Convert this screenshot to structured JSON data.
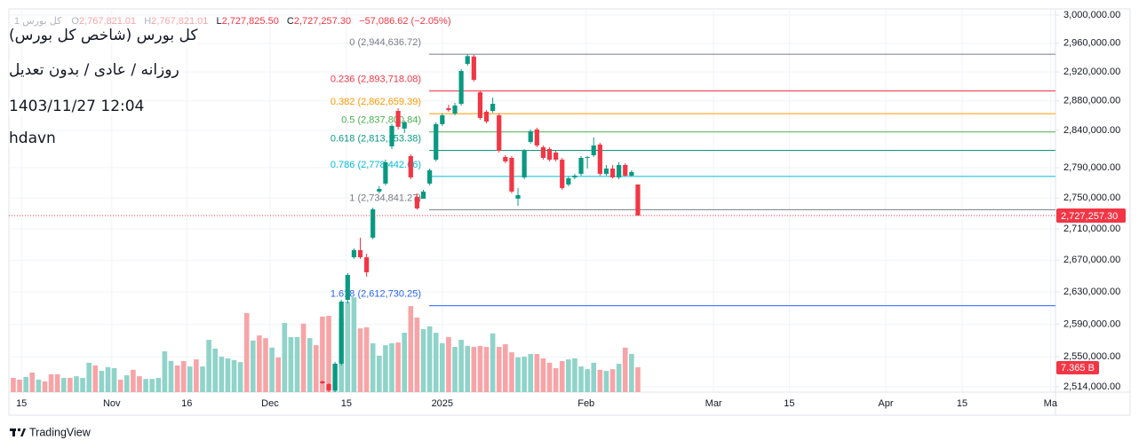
{
  "header": {
    "symbol": "1 کل بورس",
    "ohlc": [
      {
        "key": "O",
        "value": "2,767,821.01"
      },
      {
        "key": "H",
        "value": "2,767,821.01"
      },
      {
        "key": "L",
        "value": "2,727,825.50"
      },
      {
        "key": "C",
        "value": "2,727,257.30"
      }
    ],
    "change": "−57,086.62 (−2.05%)"
  },
  "overlay": {
    "lines": [
      "کل بورس (شاخص کل بورس)",
      "روزانه / عادی / بدون تعدیل",
      "1403/11/27 12:04",
      "hdavn"
    ]
  },
  "chart_data": {
    "type": "candlestick",
    "log_scale": true,
    "grid": true,
    "up_color": "#089981",
    "down_color": "#f23645",
    "ylim": [
      2507600,
      3008900
    ],
    "yticks": [
      {
        "value": 3000000,
        "label": "3,000,000.00"
      },
      {
        "value": 2960000,
        "label": "2,960,000.00"
      },
      {
        "value": 2920000,
        "label": "2,920,000.00"
      },
      {
        "value": 2880000,
        "label": "2,880,000.00"
      },
      {
        "value": 2840000,
        "label": "2,840,000.00"
      },
      {
        "value": 2790000,
        "label": "2,790,000.00"
      },
      {
        "value": 2750000,
        "label": "2,750,000.00"
      },
      {
        "value": 2710000,
        "label": "2,710,000.00"
      },
      {
        "value": 2670000,
        "label": "2,670,000.00"
      },
      {
        "value": 2630000,
        "label": "2,630,000.00"
      },
      {
        "value": 2590000,
        "label": "2,590,000.00"
      },
      {
        "value": 2550000,
        "label": "2,550,000.00"
      },
      {
        "value": 2514000,
        "label": "2,514,000.00"
      }
    ],
    "xlim": [
      -0.7,
      165.2
    ],
    "xticks": [
      {
        "value": 1.3,
        "label": "15"
      },
      {
        "value": 15.6,
        "label": "Nov"
      },
      {
        "value": 27.5,
        "label": "16"
      },
      {
        "value": 40.7,
        "label": "Dec"
      },
      {
        "value": 52.8,
        "label": "15"
      },
      {
        "value": 68,
        "label": "2025"
      },
      {
        "value": 90.8,
        "label": "Feb"
      },
      {
        "value": 111,
        "label": "Mar"
      },
      {
        "value": 123,
        "label": "15"
      },
      {
        "value": 138.3,
        "label": "Apr"
      },
      {
        "value": 150.4,
        "label": "15"
      },
      {
        "value": 164.4,
        "label": "Ma"
      }
    ],
    "open": [
      null,
      null,
      null,
      null,
      null,
      null,
      null,
      null,
      null,
      null,
      null,
      null,
      null,
      null,
      null,
      null,
      null,
      null,
      null,
      null,
      null,
      null,
      null,
      null,
      null,
      null,
      null,
      null,
      null,
      null,
      null,
      null,
      null,
      null,
      null,
      null,
      null,
      null,
      null,
      null,
      null,
      null,
      null,
      null,
      null,
      null,
      null,
      null,
      null,
      2520400,
      2517200,
      2509700,
      2541700,
      2620100,
      2673700,
      2682800,
      2673700,
      2698700,
      2758500,
      2769000,
      2818500,
      2866400,
      2842400,
      2805400,
      2751500,
      2749200,
      2769000,
      2800700,
      2848400,
      2870100,
      2862800,
      2876100,
      2931200,
      2941500,
      2891900,
      2865200,
      2866400,
      2860400,
      2804300,
      2803100,
      2749200,
      2777200,
      2824400,
      2841200,
      2817300,
      2814900,
      2810200,
      2800700,
      2767800,
      2777200,
      2781900,
      2803100,
      2806600,
      2820900,
      2781900,
      2788900,
      2777200,
      2793600,
      2779500,
      2767821.01
    ],
    "high": [
      null,
      null,
      null,
      null,
      null,
      null,
      null,
      null,
      null,
      null,
      null,
      null,
      null,
      null,
      null,
      null,
      null,
      null,
      null,
      null,
      null,
      null,
      null,
      null,
      null,
      null,
      null,
      null,
      null,
      null,
      null,
      null,
      null,
      null,
      null,
      null,
      null,
      null,
      null,
      null,
      null,
      null,
      null,
      null,
      null,
      null,
      null,
      null,
      null,
      2521400,
      2518200,
      2543900,
      2620100,
      2653500,
      2685000,
      2698700,
      2678300,
      2737600,
      2765500,
      2800700,
      2848400,
      2870100,
      2853200,
      2807800,
      2756200,
      2760800,
      2788900,
      2850800,
      2862800,
      2874900,
      2877300,
      2923800,
      2944636.72,
      2944000,
      2894400,
      2867600,
      2884600,
      2862800,
      2806600,
      2805400,
      2763200,
      2814900,
      2841200,
      2843600,
      2819700,
      2817300,
      2812500,
      2803100,
      2778400,
      2781900,
      2805400,
      2805400,
      2830400,
      2823200,
      2793600,
      2793600,
      2797200,
      2796000,
      2786600,
      2767821.01
    ],
    "low": [
      null,
      null,
      null,
      null,
      null,
      null,
      null,
      null,
      null,
      null,
      null,
      null,
      null,
      null,
      null,
      null,
      null,
      null,
      null,
      null,
      null,
      null,
      null,
      null,
      null,
      null,
      null,
      null,
      null,
      null,
      null,
      null,
      null,
      null,
      null,
      null,
      null,
      null,
      null,
      null,
      null,
      null,
      null,
      null,
      null,
      null,
      null,
      null,
      null,
      2517200,
      2507600,
      2507600,
      2539600,
      2615700,
      2671500,
      2671500,
      2649000,
      2696400,
      2756200,
      2766700,
      2814900,
      2841200,
      2836400,
      2774800,
      2734841.27,
      2749200,
      2766700,
      2798400,
      2846000,
      2865200,
      2860400,
      2873700,
      2928700,
      2906600,
      2854400,
      2849600,
      2864000,
      2810200,
      2796000,
      2756200,
      2740000,
      2774800,
      2822100,
      2817300,
      2800700,
      2798400,
      2798400,
      2760800,
      2765500,
      2774800,
      2779500,
      2788900,
      2804300,
      2779500,
      2779500,
      2776000,
      2774800,
      2778400,
      2778400,
      2727825.5
    ],
    "close": [
      null,
      null,
      null,
      null,
      null,
      null,
      null,
      null,
      null,
      null,
      null,
      null,
      null,
      null,
      null,
      null,
      null,
      null,
      null,
      null,
      null,
      null,
      null,
      null,
      null,
      null,
      null,
      null,
      null,
      null,
      null,
      null,
      null,
      null,
      null,
      null,
      null,
      null,
      null,
      null,
      null,
      null,
      null,
      null,
      null,
      null,
      null,
      null,
      null,
      2518200,
      2509700,
      2541700,
      2617900,
      2651300,
      2682800,
      2673700,
      2654600,
      2735300,
      2762000,
      2797200,
      2846000,
      2844800,
      2850800,
      2777200,
      2736500,
      2758500,
      2786600,
      2848400,
      2860400,
      2867600,
      2873700,
      2921300,
      2942000,
      2909100,
      2856800,
      2852000,
      2876100,
      2812500,
      2798400,
      2758500,
      2753900,
      2812500,
      2838800,
      2819700,
      2803100,
      2800700,
      2800700,
      2763200,
      2776000,
      2779500,
      2803100,
      2804300,
      2819700,
      2781900,
      2788900,
      2777200,
      2793600,
      2779500,
      2784343.92,
      2727257.3
    ],
    "volume": [
      4.2,
      3.7,
      4.5,
      5.8,
      3.7,
      3.2,
      5.3,
      5.3,
      4.2,
      4.2,
      4.7,
      4.2,
      8.7,
      7.9,
      6.3,
      7.4,
      7.1,
      3.7,
      5.0,
      6.6,
      4.7,
      3.9,
      3.9,
      4.2,
      12.1,
      9.2,
      7.9,
      9.2,
      7.6,
      9.7,
      7.6,
      15.5,
      12.9,
      10.5,
      10.0,
      9.5,
      8.9,
      23.4,
      15.3,
      16.8,
      16.0,
      13.2,
      10.3,
      20.5,
      16.3,
      16.3,
      20.3,
      16.0,
      13.9,
      22.4,
      22.6,
      8.4,
      21.8,
      26.8,
      28.1,
      18.9,
      19.2,
      14.5,
      10.8,
      13.9,
      14.5,
      14.7,
      17.6,
      25.5,
      22.1,
      18.7,
      19.5,
      17.6,
      14.5,
      16.3,
      13.4,
      15.5,
      13.7,
      13.4,
      13.7,
      13.4,
      17.4,
      13.4,
      14.2,
      11.8,
      10.3,
      10.5,
      11.3,
      11.3,
      10.0,
      8.7,
      7.1,
      9.2,
      9.7,
      10.0,
      7.6,
      6.8,
      8.7,
      6.6,
      6.3,
      6.8,
      8.4,
      13.2,
      11.3,
      7.365
    ],
    "volume_lim": [
      0,
      113.6
    ],
    "volume_colors": [
      "#f7a4a7",
      "#f7a4a7",
      "#8fd3c9",
      "#f7a4a7",
      "#8fd3c9",
      "#f7a4a7",
      "#f7a4a7",
      "#f7a4a7",
      "#8fd3c9",
      "#f7a4a7",
      "#8fd3c9",
      "#8fd3c9",
      "#8fd3c9",
      "#f7a4a7",
      "#8fd3c9",
      "#8fd3c9",
      "#8fd3c9",
      "#f7a4a7",
      "#8fd3c9",
      "#f7a4a7",
      "#f7a4a7",
      "#8fd3c9",
      "#8fd3c9",
      "#8fd3c9",
      "#8fd3c9",
      "#8fd3c9",
      "#f7a4a7",
      "#f7a4a7",
      "#8fd3c9",
      "#f7a4a7",
      "#8fd3c9",
      "#8fd3c9",
      "#8fd3c9",
      "#8fd3c9",
      "#8fd3c9",
      "#8fd3c9",
      "#8fd3c9",
      "#f7a4a7",
      "#8fd3c9",
      "#f7a4a7",
      "#f7a4a7",
      "#8fd3c9",
      "#f7a4a7",
      "#8fd3c9",
      "#8fd3c9",
      "#8fd3c9",
      "#f7a4a7",
      "#8fd3c9",
      "#f7a4a7",
      "#f7a4a7",
      "#f7a4a7",
      "#8fd3c9",
      "#8fd3c9",
      "#8fd3c9",
      "#8fd3c9",
      "#f7a4a7",
      "#f7a4a7",
      "#8fd3c9",
      "#8fd3c9",
      "#8fd3c9",
      "#8fd3c9",
      "#f7a4a7",
      "#8fd3c9",
      "#f7a4a7",
      "#f7a4a7",
      "#8fd3c9",
      "#8fd3c9",
      "#8fd3c9",
      "#8fd3c9",
      "#f7a4a7",
      "#8fd3c9",
      "#8fd3c9",
      "#8fd3c9",
      "#f7a4a7",
      "#f7a4a7",
      "#f7a4a7",
      "#8fd3c9",
      "#f7a4a7",
      "#f7a4a7",
      "#f7a4a7",
      "#8fd3c9",
      "#8fd3c9",
      "#8fd3c9",
      "#f7a4a7",
      "#f7a4a7",
      "#f7a4a7",
      "#f7a4a7",
      "#f7a4a7",
      "#8fd3c9",
      "#8fd3c9",
      "#8fd3c9",
      "#8fd3c9",
      "#8fd3c9",
      "#f7a4a7",
      "#8fd3c9",
      "#f7a4a7",
      "#8fd3c9",
      "#f7a4a7",
      "#8fd3c9",
      "#f7a4a7"
    ],
    "price_line": {
      "value": 2727257.3,
      "label": "2,727,257.30",
      "color": "#f23645"
    },
    "volume_tag": {
      "value": 7.365,
      "label": "7.365 B",
      "color": "#f23645"
    },
    "fib": [
      {
        "label": "0 (2,944,636.72)",
        "value": 2944636.72,
        "color": "#787b86"
      },
      {
        "label": "0.236 (2,893,718.08)",
        "value": 2893718.08,
        "color": "#f23645"
      },
      {
        "label": "0.382 (2,862,659.39)",
        "value": 2862659.39,
        "color": "#ff9800"
      },
      {
        "label": "0.5 (2,837,800.84)",
        "value": 2837800.84,
        "color": "#4caf50"
      },
      {
        "label": "0.618 (2,813,153.38)",
        "value": 2813153.38,
        "color": "#089981"
      },
      {
        "label": "0.786 (2,778,442.66)",
        "value": 2778442.66,
        "color": "#00bcd4"
      },
      {
        "label": "1 (2,734,841.27)",
        "value": 2734841.27,
        "color": "#787b86"
      },
      {
        "label": "1.618 (2,612,730.25)",
        "value": 2612730.25,
        "color": "#2962ff"
      }
    ]
  },
  "footer": {
    "brand": "TradingView"
  }
}
